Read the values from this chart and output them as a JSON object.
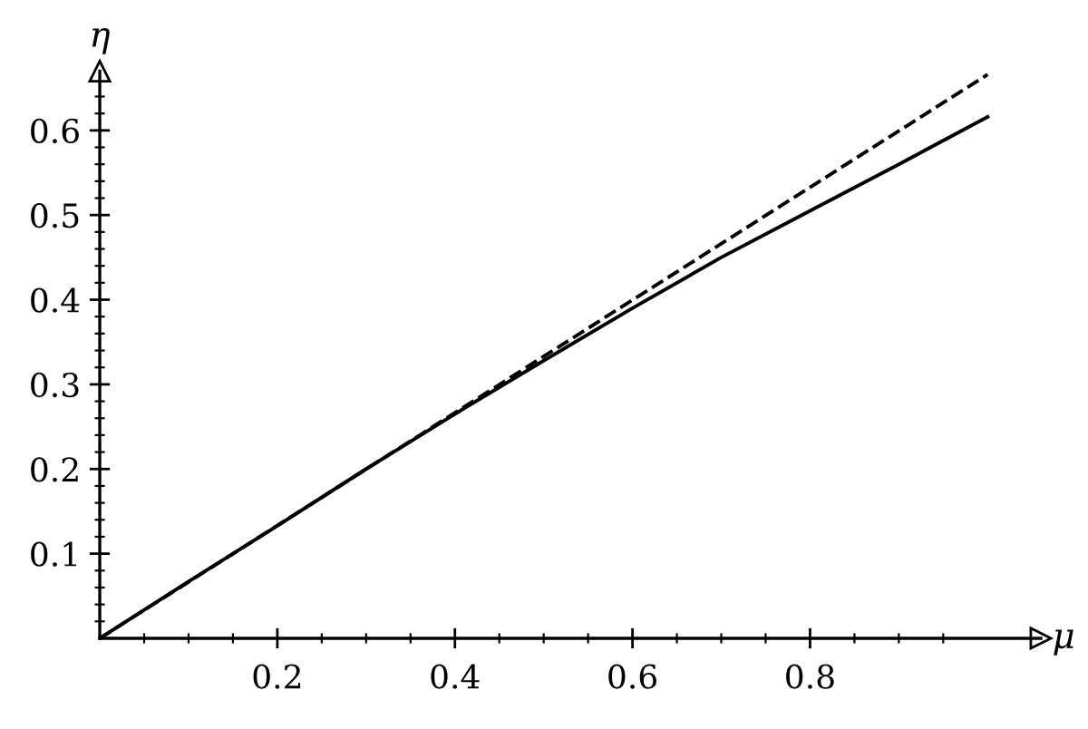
{
  "chart_data": {
    "type": "line",
    "xlabel": "μ",
    "ylabel": "η",
    "xlim": [
      0,
      1.06
    ],
    "ylim": [
      0,
      0.67
    ],
    "xticks": [
      {
        "value": 0.05,
        "label": null
      },
      {
        "value": 0.1,
        "label": null
      },
      {
        "value": 0.15,
        "label": null
      },
      0.2,
      {
        "value": 0.25,
        "label": null
      },
      {
        "value": 0.3,
        "label": null
      },
      {
        "value": 0.35,
        "label": null
      },
      0.4,
      {
        "value": 0.45,
        "label": null
      },
      {
        "value": 0.5,
        "label": null
      },
      {
        "value": 0.55,
        "label": null
      },
      0.6,
      {
        "value": 0.65,
        "label": null
      },
      {
        "value": 0.7,
        "label": null
      },
      {
        "value": 0.75,
        "label": null
      },
      0.8,
      {
        "value": 0.85,
        "label": null
      },
      {
        "value": 0.9,
        "label": null
      },
      {
        "value": 0.95,
        "label": null
      }
    ],
    "yticks": [
      {
        "value": 0.02,
        "label": null
      },
      {
        "value": 0.04,
        "label": null
      },
      {
        "value": 0.06,
        "label": null
      },
      {
        "value": 0.08,
        "label": null
      },
      0.1,
      {
        "value": 0.12,
        "label": null
      },
      {
        "value": 0.14,
        "label": null
      },
      {
        "value": 0.16,
        "label": null
      },
      {
        "value": 0.18,
        "label": null
      },
      0.2,
      {
        "value": 0.22,
        "label": null
      },
      {
        "value": 0.24,
        "label": null
      },
      {
        "value": 0.26,
        "label": null
      },
      {
        "value": 0.28,
        "label": null
      },
      0.3,
      {
        "value": 0.32,
        "label": null
      },
      {
        "value": 0.34,
        "label": null
      },
      {
        "value": 0.36,
        "label": null
      },
      {
        "value": 0.38,
        "label": null
      },
      0.4,
      {
        "value": 0.42,
        "label": null
      },
      {
        "value": 0.44,
        "label": null
      },
      {
        "value": 0.46,
        "label": null
      },
      {
        "value": 0.48,
        "label": null
      },
      0.5,
      {
        "value": 0.52,
        "label": null
      },
      {
        "value": 0.54,
        "label": null
      },
      {
        "value": 0.56,
        "label": null
      },
      {
        "value": 0.58,
        "label": null
      },
      0.6,
      {
        "value": 0.62,
        "label": null
      },
      {
        "value": 0.64,
        "label": null
      }
    ],
    "series": [
      {
        "color": "#000000",
        "line_style": "solid",
        "x": [
          0,
          0.1,
          0.2,
          0.3,
          0.4,
          0.5,
          0.6,
          0.7,
          0.8,
          0.9,
          1.0
        ],
        "values": [
          0,
          0.067,
          0.133,
          0.2,
          0.265,
          0.328,
          0.39,
          0.45,
          0.505,
          0.56,
          0.616
        ]
      },
      {
        "color": "#000000",
        "line_style": "dashed",
        "x": [
          0,
          1.0
        ],
        "values": [
          0,
          0.666
        ]
      }
    ],
    "grid": false,
    "legend": false,
    "marker": "none"
  }
}
